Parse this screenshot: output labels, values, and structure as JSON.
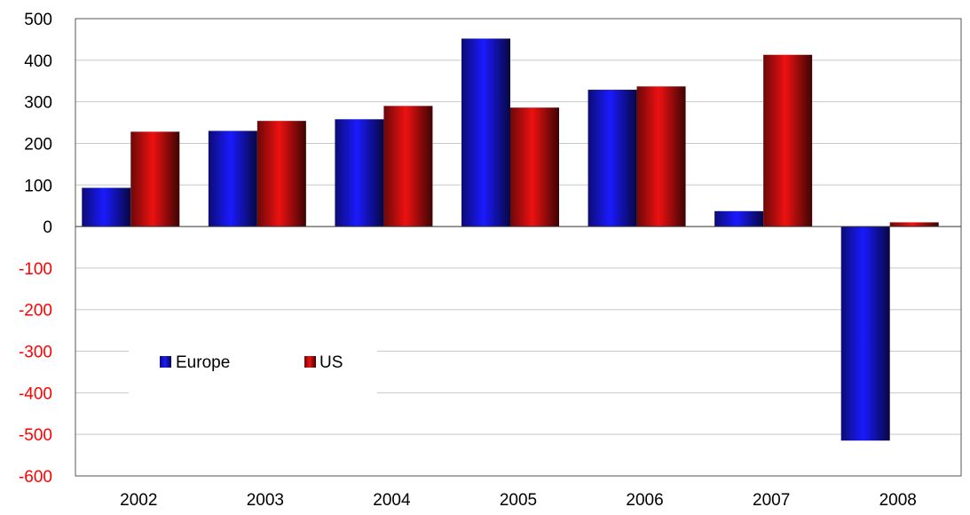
{
  "chart_data": {
    "type": "bar",
    "title": "",
    "xlabel": "",
    "ylabel": "",
    "categories": [
      "2002",
      "2003",
      "2004",
      "2005",
      "2006",
      "2007",
      "2008"
    ],
    "series": [
      {
        "name": "Europe",
        "color": "#1a1aff",
        "values": [
          93,
          230,
          258,
          452,
          329,
          37,
          -515
        ]
      },
      {
        "name": "US",
        "color": "#ee1111",
        "values": [
          228,
          254,
          290,
          286,
          337,
          413,
          10
        ]
      }
    ],
    "ylim": [
      -600,
      500
    ],
    "y_ticks": [
      500,
      400,
      300,
      200,
      100,
      0,
      -100,
      -200,
      -300,
      -400,
      -500,
      -600
    ],
    "y_tick_labels": [
      "500",
      "400",
      "300",
      "200",
      "100",
      "0",
      "-100",
      "-200",
      "-300",
      "-400",
      "-500",
      "-600"
    ],
    "positive_tick_color": "#000000",
    "negative_tick_color": "#ff0000",
    "grid": true,
    "legend_position": "lower-left"
  }
}
